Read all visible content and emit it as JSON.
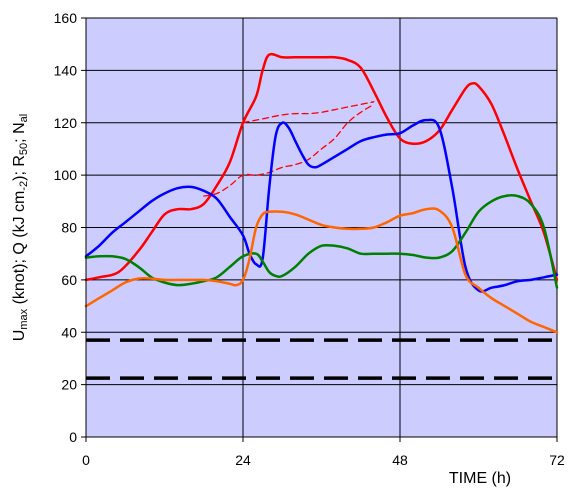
{
  "chart_data": {
    "type": "line",
    "xlabel": "TIME (h)",
    "ylabel_parts": [
      {
        "text": "U",
        "sub": false
      },
      {
        "text": "max",
        "sub": true
      },
      {
        "text": " (knot); Q (kJ cm",
        "sub": false
      },
      {
        "text": "-2",
        "sub": true
      },
      {
        "text": "); R",
        "sub": false
      },
      {
        "text": "50",
        "sub": true
      },
      {
        "text": "; N",
        "sub": false
      },
      {
        "text": "al",
        "sub": true
      }
    ],
    "xlim": [
      0,
      72
    ],
    "ylim": [
      0,
      160
    ],
    "x_ticks": [
      0,
      24,
      48,
      72
    ],
    "x_tick_labels": [
      "0",
      "24",
      "48",
      "72"
    ],
    "y_ticks": [
      0,
      20,
      40,
      60,
      80,
      100,
      120,
      140,
      160
    ],
    "y_tick_labels": [
      "0",
      "20",
      "40",
      "60",
      "80",
      "100",
      "120",
      "140",
      "160"
    ],
    "grid": true,
    "plot_background": "#ccccff",
    "reference_lines": [
      {
        "y": 37,
        "color": "#000000",
        "style": "dashed"
      },
      {
        "y": 22.5,
        "color": "#000000",
        "style": "dashed"
      }
    ],
    "series": [
      {
        "color": "#ff0000",
        "style": "solid",
        "width": 2.5,
        "x": [
          0,
          2,
          5,
          8,
          10,
          12,
          14,
          16,
          18,
          20,
          22,
          24,
          26,
          27,
          28,
          30,
          32,
          34,
          36,
          38,
          40,
          42,
          44,
          46,
          48,
          50,
          52,
          54,
          56,
          58,
          59,
          60,
          62,
          64,
          66,
          68,
          70,
          72
        ],
        "y": [
          60,
          61,
          63,
          71,
          78,
          85,
          87,
          87,
          89,
          96,
          105,
          120,
          130,
          140,
          146,
          145,
          145,
          145,
          145,
          145,
          144,
          141,
          132,
          122,
          114,
          112,
          113,
          117,
          125,
          133,
          135,
          134,
          127,
          115,
          102,
          90,
          78,
          60
        ]
      },
      {
        "color": "#ff0000",
        "style": "dashed",
        "width": 1.3,
        "x": [
          18,
          20,
          22,
          24,
          26,
          28,
          30,
          32,
          34,
          36,
          38,
          40,
          42,
          44
        ],
        "y": [
          92,
          93,
          96,
          100,
          100,
          101,
          103,
          104,
          106,
          110,
          114,
          120,
          124,
          127
        ]
      },
      {
        "color": "#ff0000",
        "style": "dashed",
        "width": 1.3,
        "x": [
          24,
          26,
          28,
          30,
          32,
          34,
          36,
          38,
          40,
          42,
          44
        ],
        "y": [
          120,
          121,
          122,
          123,
          123.5,
          123.5,
          124,
          125,
          126,
          127,
          128
        ]
      },
      {
        "color": "#0000ff",
        "style": "solid",
        "width": 2.5,
        "x": [
          0,
          2,
          4,
          6,
          8,
          10,
          12,
          14,
          16,
          18,
          20,
          22,
          24,
          25,
          26,
          27,
          28,
          29,
          30,
          31,
          32,
          33,
          34,
          35,
          36,
          38,
          40,
          42,
          44,
          46,
          48,
          50,
          52,
          54,
          56,
          58,
          60,
          62,
          64,
          66,
          68,
          70,
          72
        ],
        "y": [
          69,
          73,
          78,
          82,
          86,
          90,
          93,
          95,
          95.5,
          94,
          91,
          84,
          77,
          70,
          66,
          68,
          95,
          115,
          120,
          118,
          113,
          108,
          104,
          103,
          104,
          107,
          110,
          113,
          114.5,
          115.5,
          116,
          119,
          121,
          118,
          95,
          65,
          56,
          57,
          58,
          59.5,
          60,
          61,
          62
        ]
      },
      {
        "color": "#008000",
        "style": "solid",
        "width": 2.5,
        "x": [
          0,
          2,
          4,
          6,
          8,
          10,
          12,
          14,
          16,
          18,
          20,
          22,
          24,
          26,
          27,
          28,
          29,
          30,
          32,
          34,
          36,
          38,
          40,
          42,
          44,
          46,
          48,
          50,
          52,
          54,
          56,
          58,
          60,
          62,
          64,
          66,
          68,
          70,
          72
        ],
        "y": [
          68.5,
          69,
          69,
          68,
          65,
          61,
          59,
          58,
          58.5,
          59.5,
          61,
          65,
          69,
          70,
          67,
          63,
          61.5,
          61.5,
          65,
          70,
          73,
          73,
          72,
          70,
          70,
          70,
          70,
          69.5,
          68.5,
          68.5,
          71,
          78,
          86,
          90,
          92,
          92,
          89,
          80,
          57
        ]
      },
      {
        "color": "#ff6600",
        "style": "solid",
        "width": 2.5,
        "x": [
          0,
          2,
          4,
          6,
          8,
          10,
          12,
          14,
          16,
          18,
          20,
          22,
          23,
          24,
          25,
          26,
          27,
          28,
          30,
          32,
          34,
          36,
          38,
          40,
          42,
          44,
          46,
          48,
          50,
          52,
          54,
          56,
          58,
          60,
          62,
          64,
          66,
          68,
          70,
          72
        ],
        "y": [
          50,
          53,
          56,
          59,
          60.5,
          60.5,
          60,
          60,
          60,
          60,
          59.5,
          58.5,
          58,
          60,
          68,
          80,
          85,
          86,
          86,
          85,
          83,
          81,
          80,
          79.5,
          79.5,
          80,
          82,
          84.5,
          85.5,
          87,
          86.5,
          80,
          62,
          57,
          53,
          50,
          47,
          44,
          42,
          40
        ]
      }
    ]
  }
}
